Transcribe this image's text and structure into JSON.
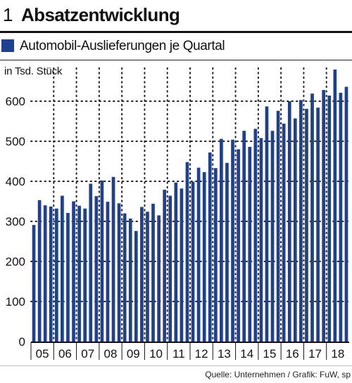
{
  "colors": {
    "bar": "#1f3f8f",
    "grid": "#222222",
    "text": "#111111",
    "rule": "#111111"
  },
  "header": {
    "number": "1",
    "title": "Absatzentwicklung"
  },
  "legend": {
    "label": "Automobil-Auslieferungen je Quartal",
    "swatch_color": "#1f3f8f"
  },
  "unit": "in Tsd. Stück",
  "source": "Quelle: Unternehmen / Grafik: FuW, sp",
  "chart_data": {
    "type": "bar",
    "title": "Absatzentwicklung",
    "ylabel": "in Tsd. Stück",
    "xlabel": "",
    "ylim": [
      0,
      690
    ],
    "y_ticks": [
      0,
      100,
      200,
      300,
      400,
      500,
      600
    ],
    "x_tick_labels": [
      "05",
      "06",
      "07",
      "08",
      "09",
      "10",
      "11",
      "12",
      "13",
      "14",
      "15",
      "16",
      "17",
      "18"
    ],
    "grid": true,
    "legend_position": "top-left",
    "series": [
      {
        "name": "Automobil-Auslieferungen je Quartal",
        "values": [
          291,
          353,
          340,
          337,
          332,
          364,
          321,
          350,
          339,
          332,
          394,
          363,
          402,
          349,
          411,
          345,
          320,
          307,
          276,
          336,
          324,
          344,
          315,
          379,
          364,
          397,
          382,
          448,
          399,
          434,
          423,
          472,
          433,
          506,
          446,
          504,
          480,
          526,
          486,
          531,
          508,
          587,
          526,
          576,
          544,
          600,
          557,
          603,
          581,
          619,
          584,
          628,
          614,
          679,
          621,
          636
        ]
      }
    ]
  }
}
